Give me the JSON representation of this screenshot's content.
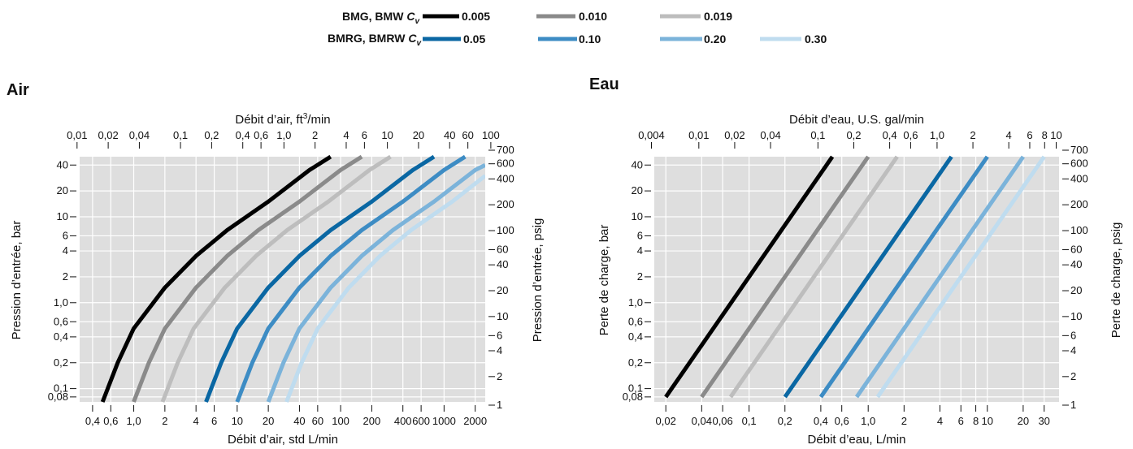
{
  "legend": {
    "row1": {
      "label": "BMG, BMW ",
      "cv": "C",
      "sub": "v",
      "color": "#111111",
      "items": [
        {
          "value": "0.005",
          "color": "#000000"
        },
        {
          "value": "0.010",
          "color": "#8a8a8a"
        },
        {
          "value": "0.019",
          "color": "#bdbdbd"
        }
      ]
    },
    "row2": {
      "label": "BMRG, BMRW ",
      "cv": "C",
      "sub": "v",
      "color": "#1a6fa8",
      "items": [
        {
          "value": "0.05",
          "color": "#0a67a3"
        },
        {
          "value": "0.10",
          "color": "#3d8cc4"
        },
        {
          "value": "0.20",
          "color": "#7bb3da"
        },
        {
          "value": "0.30",
          "color": "#bfdcef"
        }
      ]
    }
  },
  "chart_data": [
    {
      "type": "line",
      "title": "Air",
      "xlabel": "Débit d’air, std L/min",
      "xlabel_top_main": "Débit d’air, ft",
      "xlabel_top_sup": "3",
      "xlabel_top_end": "/min",
      "ylabel": "Pression d’entrée, bar",
      "ylabel_right": "Pression d’entrée, psig",
      "x_scale": "log",
      "y_scale": "log",
      "xlim": [
        0.3,
        2500
      ],
      "ylim": [
        0.07,
        50
      ],
      "grid": true,
      "x_ticks": [
        {
          "v": 0.4,
          "l": "0,4"
        },
        {
          "v": 0.6,
          "l": "0,6"
        },
        {
          "v": 1,
          "l": "1,0"
        },
        {
          "v": 2,
          "l": "2"
        },
        {
          "v": 4,
          "l": "4"
        },
        {
          "v": 6,
          "l": "6"
        },
        {
          "v": 10,
          "l": "10"
        },
        {
          "v": 20,
          "l": "20"
        },
        {
          "v": 40,
          "l": "40"
        },
        {
          "v": 60,
          "l": "60"
        },
        {
          "v": 100,
          "l": "100"
        },
        {
          "v": 200,
          "l": "200"
        },
        {
          "v": 400,
          "l": "400"
        },
        {
          "v": 600,
          "l": "600"
        },
        {
          "v": 1000,
          "l": "1000"
        },
        {
          "v": 2000,
          "l": "2000"
        }
      ],
      "x_ticks_top": [
        {
          "v": 0.01,
          "l": "0,01"
        },
        {
          "v": 0.02,
          "l": "0,02"
        },
        {
          "v": 0.04,
          "l": "0,04"
        },
        {
          "v": 0.1,
          "l": "0,1"
        },
        {
          "v": 0.2,
          "l": "0,2"
        },
        {
          "v": 0.4,
          "l": "0,4"
        },
        {
          "v": 0.6,
          "l": "0,6"
        },
        {
          "v": 1,
          "l": "1,0"
        },
        {
          "v": 2,
          "l": "2"
        },
        {
          "v": 4,
          "l": "4"
        },
        {
          "v": 6,
          "l": "6"
        },
        {
          "v": 10,
          "l": "10"
        },
        {
          "v": 20,
          "l": "20"
        },
        {
          "v": 40,
          "l": "40"
        },
        {
          "v": 60,
          "l": "60"
        },
        {
          "v": 100,
          "l": "100"
        }
      ],
      "y_ticks": [
        {
          "v": 0.08,
          "l": "0,08"
        },
        {
          "v": 0.1,
          "l": "0,1"
        },
        {
          "v": 0.2,
          "l": "0,2"
        },
        {
          "v": 0.4,
          "l": "0,4"
        },
        {
          "v": 0.6,
          "l": "0,6"
        },
        {
          "v": 1,
          "l": "1,0"
        },
        {
          "v": 2,
          "l": "2"
        },
        {
          "v": 4,
          "l": "4"
        },
        {
          "v": 6,
          "l": "6"
        },
        {
          "v": 10,
          "l": "10"
        },
        {
          "v": 20,
          "l": "20"
        },
        {
          "v": 40,
          "l": "40"
        }
      ],
      "y_ticks_right": [
        {
          "v": 1,
          "l": "1"
        },
        {
          "v": 2,
          "l": "2"
        },
        {
          "v": 4,
          "l": "4"
        },
        {
          "v": 6,
          "l": "6"
        },
        {
          "v": 10,
          "l": "10"
        },
        {
          "v": 20,
          "l": "20"
        },
        {
          "v": 40,
          "l": "40"
        },
        {
          "v": 60,
          "l": "60"
        },
        {
          "v": 100,
          "l": "100"
        },
        {
          "v": 200,
          "l": "200"
        },
        {
          "v": 400,
          "l": "400"
        },
        {
          "v": 600,
          "l": "600"
        },
        {
          "v": 700,
          "l": "700"
        }
      ],
      "series": [
        {
          "name": "0.005",
          "color": "#000000",
          "points": [
            [
              0.5,
              0.07
            ],
            [
              0.7,
              0.2
            ],
            [
              1.0,
              0.5
            ],
            [
              2.0,
              1.5
            ],
            [
              4.0,
              3.5
            ],
            [
              8,
              7
            ],
            [
              20,
              15
            ],
            [
              50,
              35
            ],
            [
              80,
              50
            ]
          ]
        },
        {
          "name": "0.010",
          "color": "#8a8a8a",
          "points": [
            [
              1.0,
              0.07
            ],
            [
              1.4,
              0.2
            ],
            [
              2.0,
              0.5
            ],
            [
              4.0,
              1.5
            ],
            [
              8,
              3.5
            ],
            [
              16,
              7
            ],
            [
              40,
              15
            ],
            [
              100,
              35
            ],
            [
              160,
              50
            ]
          ]
        },
        {
          "name": "0.019",
          "color": "#bdbdbd",
          "points": [
            [
              1.9,
              0.07
            ],
            [
              2.66,
              0.2
            ],
            [
              3.8,
              0.5
            ],
            [
              7.6,
              1.5
            ],
            [
              15.2,
              3.5
            ],
            [
              30.4,
              7
            ],
            [
              76,
              15
            ],
            [
              190,
              35
            ],
            [
              304,
              50
            ]
          ]
        },
        {
          "name": "0.05",
          "color": "#0a67a3",
          "points": [
            [
              5,
              0.07
            ],
            [
              7,
              0.2
            ],
            [
              10,
              0.5
            ],
            [
              20,
              1.5
            ],
            [
              40,
              3.5
            ],
            [
              80,
              7
            ],
            [
              200,
              15
            ],
            [
              500,
              35
            ],
            [
              800,
              50
            ]
          ]
        },
        {
          "name": "0.10",
          "color": "#3d8cc4",
          "points": [
            [
              10,
              0.07
            ],
            [
              14,
              0.2
            ],
            [
              20,
              0.5
            ],
            [
              40,
              1.5
            ],
            [
              80,
              3.5
            ],
            [
              160,
              7
            ],
            [
              400,
              15
            ],
            [
              1000,
              35
            ],
            [
              1600,
              50
            ]
          ]
        },
        {
          "name": "0.20",
          "color": "#7bb3da",
          "points": [
            [
              20,
              0.07
            ],
            [
              28,
              0.2
            ],
            [
              40,
              0.5
            ],
            [
              80,
              1.5
            ],
            [
              160,
              3.5
            ],
            [
              320,
              7
            ],
            [
              800,
              15
            ],
            [
              2000,
              35
            ],
            [
              2500,
              40
            ]
          ]
        },
        {
          "name": "0.30",
          "color": "#bfdcef",
          "points": [
            [
              30,
              0.07
            ],
            [
              42,
              0.2
            ],
            [
              60,
              0.5
            ],
            [
              120,
              1.5
            ],
            [
              240,
              3.5
            ],
            [
              480,
              7
            ],
            [
              1200,
              15
            ],
            [
              2500,
              30
            ]
          ]
        }
      ]
    },
    {
      "type": "line",
      "title": "Eau",
      "xlabel": "Débit d’eau, L/min",
      "xlabel_top_main": "Débit d’eau, U.S. gal/min",
      "xlabel_top_sup": "",
      "xlabel_top_end": "",
      "ylabel": "Perte de charge, bar",
      "ylabel_right": "Perte de charge, psig",
      "x_scale": "log",
      "y_scale": "log",
      "xlim": [
        0.016,
        40
      ],
      "ylim": [
        0.07,
        50
      ],
      "grid": true,
      "x_ticks": [
        {
          "v": 0.02,
          "l": "0,02"
        },
        {
          "v": 0.04,
          "l": "0,04"
        },
        {
          "v": 0.06,
          "l": "0,06"
        },
        {
          "v": 0.1,
          "l": "0,1"
        },
        {
          "v": 0.2,
          "l": "0,2"
        },
        {
          "v": 0.4,
          "l": "0,4"
        },
        {
          "v": 0.6,
          "l": "0,6"
        },
        {
          "v": 1,
          "l": "1,0"
        },
        {
          "v": 2,
          "l": "2"
        },
        {
          "v": 4,
          "l": "4"
        },
        {
          "v": 6,
          "l": "6"
        },
        {
          "v": 8,
          "l": "8"
        },
        {
          "v": 10,
          "l": "10"
        },
        {
          "v": 20,
          "l": "20"
        },
        {
          "v": 30,
          "l": "30"
        }
      ],
      "x_ticks_top": [
        {
          "v": 0.004,
          "l": "0,004"
        },
        {
          "v": 0.01,
          "l": "0,01"
        },
        {
          "v": 0.02,
          "l": "0,02"
        },
        {
          "v": 0.04,
          "l": "0,04"
        },
        {
          "v": 0.1,
          "l": "0,1"
        },
        {
          "v": 0.2,
          "l": "0,2"
        },
        {
          "v": 0.4,
          "l": "0,4"
        },
        {
          "v": 0.6,
          "l": "0,6"
        },
        {
          "v": 1,
          "l": "1,0"
        },
        {
          "v": 2,
          "l": "2"
        },
        {
          "v": 4,
          "l": "4"
        },
        {
          "v": 6,
          "l": "6"
        },
        {
          "v": 8,
          "l": "8"
        },
        {
          "v": 10,
          "l": "10"
        }
      ],
      "y_ticks": [
        {
          "v": 0.08,
          "l": "0,08"
        },
        {
          "v": 0.1,
          "l": "0,1"
        },
        {
          "v": 0.2,
          "l": "0,2"
        },
        {
          "v": 0.4,
          "l": "0,4"
        },
        {
          "v": 0.6,
          "l": "0,6"
        },
        {
          "v": 1,
          "l": "1,0"
        },
        {
          "v": 2,
          "l": "2"
        },
        {
          "v": 4,
          "l": "4"
        },
        {
          "v": 6,
          "l": "6"
        },
        {
          "v": 10,
          "l": "10"
        },
        {
          "v": 20,
          "l": "20"
        },
        {
          "v": 40,
          "l": "40"
        }
      ],
      "y_ticks_right": [
        {
          "v": 1,
          "l": "1"
        },
        {
          "v": 2,
          "l": "2"
        },
        {
          "v": 4,
          "l": "4"
        },
        {
          "v": 6,
          "l": "6"
        },
        {
          "v": 10,
          "l": "10"
        },
        {
          "v": 20,
          "l": "20"
        },
        {
          "v": 40,
          "l": "40"
        },
        {
          "v": 60,
          "l": "60"
        },
        {
          "v": 100,
          "l": "100"
        },
        {
          "v": 200,
          "l": "200"
        },
        {
          "v": 400,
          "l": "400"
        },
        {
          "v": 600,
          "l": "600"
        },
        {
          "v": 700,
          "l": "700"
        }
      ],
      "series": [
        {
          "name": "0.005",
          "color": "#000000",
          "points": [
            [
              0.02,
              0.08
            ],
            [
              0.2,
              8
            ],
            [
              0.5,
              50
            ]
          ]
        },
        {
          "name": "0.010",
          "color": "#8a8a8a",
          "points": [
            [
              0.04,
              0.08
            ],
            [
              0.4,
              8
            ],
            [
              1.0,
              50
            ]
          ]
        },
        {
          "name": "0.019",
          "color": "#bdbdbd",
          "points": [
            [
              0.07,
              0.08
            ],
            [
              0.7,
              8
            ],
            [
              1.75,
              50
            ]
          ]
        },
        {
          "name": "0.05",
          "color": "#0a67a3",
          "points": [
            [
              0.2,
              0.08
            ],
            [
              2,
              8
            ],
            [
              5,
              50
            ]
          ]
        },
        {
          "name": "0.10",
          "color": "#3d8cc4",
          "points": [
            [
              0.4,
              0.08
            ],
            [
              4,
              8
            ],
            [
              10,
              50
            ]
          ]
        },
        {
          "name": "0.20",
          "color": "#7bb3da",
          "points": [
            [
              0.8,
              0.08
            ],
            [
              8,
              8
            ],
            [
              20,
              50
            ]
          ]
        },
        {
          "name": "0.30",
          "color": "#bfdcef",
          "points": [
            [
              1.2,
              0.08
            ],
            [
              12,
              8
            ],
            [
              30,
              50
            ]
          ]
        }
      ]
    }
  ]
}
